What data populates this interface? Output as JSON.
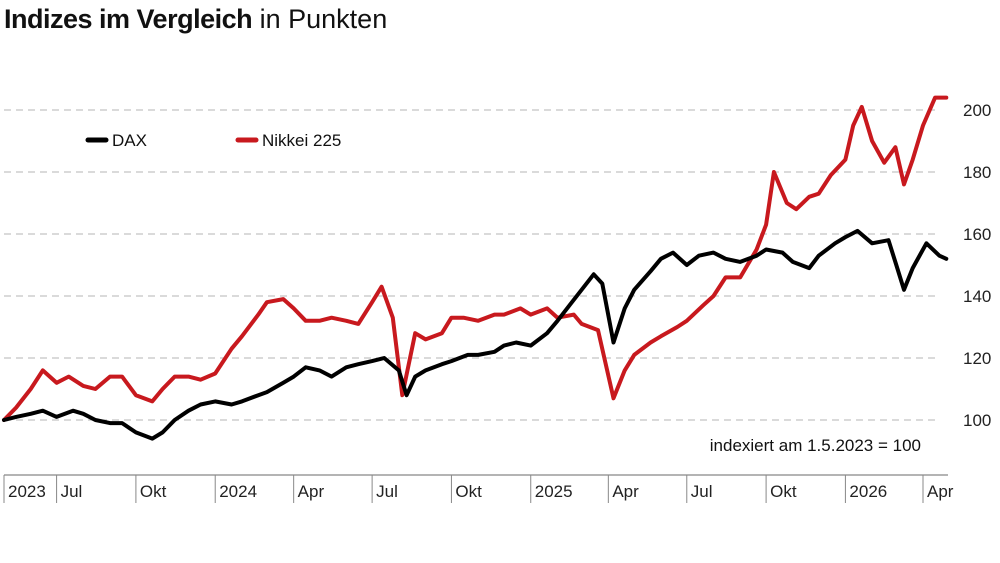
{
  "title": {
    "bold": "Indizes im Vergleich",
    "rest": "in Punkten"
  },
  "note": "indexiert am 1.5.2023 = 100",
  "colors": {
    "dax": "#000000",
    "nikkei": "#c8191e",
    "grid": "#b5b5b5",
    "axis": "#888888"
  },
  "chart_data": {
    "type": "line",
    "title": "Indizes im Vergleich in Punkten",
    "xlabel": "",
    "ylabel": "",
    "ylim": [
      85,
      210
    ],
    "xlim": [
      "2023-05-01",
      "2026-04-30"
    ],
    "y_ticks": [
      100,
      120,
      140,
      160,
      180,
      200
    ],
    "x_ticks": [
      {
        "date": "2023-05-01",
        "label": "2023"
      },
      {
        "date": "2023-07-01",
        "label": "Jul"
      },
      {
        "date": "2023-10-01",
        "label": "Okt"
      },
      {
        "date": "2024-01-01",
        "label": "2024"
      },
      {
        "date": "2024-04-01",
        "label": "Apr"
      },
      {
        "date": "2024-07-01",
        "label": "Jul"
      },
      {
        "date": "2024-10-01",
        "label": "Okt"
      },
      {
        "date": "2025-01-01",
        "label": "2025"
      },
      {
        "date": "2025-04-01",
        "label": "Apr"
      },
      {
        "date": "2025-07-01",
        "label": "Jul"
      },
      {
        "date": "2025-10-01",
        "label": "Okt"
      },
      {
        "date": "2026-01-01",
        "label": "2026"
      },
      {
        "date": "2026-04-01",
        "label": "Apr"
      }
    ],
    "grid": true,
    "legend": "top-left",
    "series": [
      {
        "name": "DAX",
        "color": "#000000",
        "points": [
          [
            "2023-05-01",
            100
          ],
          [
            "2023-05-15",
            101
          ],
          [
            "2023-06-01",
            102
          ],
          [
            "2023-06-15",
            103
          ],
          [
            "2023-07-01",
            101
          ],
          [
            "2023-07-20",
            103
          ],
          [
            "2023-08-01",
            102
          ],
          [
            "2023-08-15",
            100
          ],
          [
            "2023-09-01",
            99
          ],
          [
            "2023-09-15",
            99
          ],
          [
            "2023-10-01",
            96
          ],
          [
            "2023-10-20",
            94
          ],
          [
            "2023-11-01",
            96
          ],
          [
            "2023-11-15",
            100
          ],
          [
            "2023-12-01",
            103
          ],
          [
            "2023-12-15",
            105
          ],
          [
            "2024-01-01",
            106
          ],
          [
            "2024-01-20",
            105
          ],
          [
            "2024-02-01",
            106
          ],
          [
            "2024-02-20",
            108
          ],
          [
            "2024-03-01",
            109
          ],
          [
            "2024-03-20",
            112
          ],
          [
            "2024-04-01",
            114
          ],
          [
            "2024-04-15",
            117
          ],
          [
            "2024-05-01",
            116
          ],
          [
            "2024-05-15",
            114
          ],
          [
            "2024-06-01",
            117
          ],
          [
            "2024-06-15",
            118
          ],
          [
            "2024-07-01",
            119
          ],
          [
            "2024-07-15",
            120
          ],
          [
            "2024-08-01",
            116
          ],
          [
            "2024-08-10",
            108
          ],
          [
            "2024-08-20",
            114
          ],
          [
            "2024-09-01",
            116
          ],
          [
            "2024-09-20",
            118
          ],
          [
            "2024-10-01",
            119
          ],
          [
            "2024-10-20",
            121
          ],
          [
            "2024-11-01",
            121
          ],
          [
            "2024-11-20",
            122
          ],
          [
            "2024-12-01",
            124
          ],
          [
            "2024-12-15",
            125
          ],
          [
            "2025-01-01",
            124
          ],
          [
            "2025-01-20",
            128
          ],
          [
            "2025-02-01",
            132
          ],
          [
            "2025-02-15",
            137
          ],
          [
            "2025-03-01",
            142
          ],
          [
            "2025-03-15",
            147
          ],
          [
            "2025-03-25",
            144
          ],
          [
            "2025-04-07",
            125
          ],
          [
            "2025-04-20",
            136
          ],
          [
            "2025-05-01",
            142
          ],
          [
            "2025-05-20",
            148
          ],
          [
            "2025-06-01",
            152
          ],
          [
            "2025-06-15",
            154
          ],
          [
            "2025-07-01",
            150
          ],
          [
            "2025-07-15",
            153
          ],
          [
            "2025-08-01",
            154
          ],
          [
            "2025-08-15",
            152
          ],
          [
            "2025-09-01",
            151
          ],
          [
            "2025-09-20",
            153
          ],
          [
            "2025-10-01",
            155
          ],
          [
            "2025-10-20",
            154
          ],
          [
            "2025-11-01",
            151
          ],
          [
            "2025-11-20",
            149
          ],
          [
            "2025-12-01",
            153
          ],
          [
            "2025-12-20",
            157
          ],
          [
            "2026-01-01",
            159
          ],
          [
            "2026-01-15",
            161
          ],
          [
            "2026-02-01",
            157
          ],
          [
            "2026-02-20",
            158
          ],
          [
            "2026-03-01",
            150
          ],
          [
            "2026-03-10",
            142
          ],
          [
            "2026-03-20",
            149
          ],
          [
            "2026-04-05",
            157
          ],
          [
            "2026-04-20",
            153
          ],
          [
            "2026-04-28",
            152
          ]
        ]
      },
      {
        "name": "Nikkei 225",
        "color": "#c8191e",
        "points": [
          [
            "2023-05-01",
            100
          ],
          [
            "2023-05-15",
            104
          ],
          [
            "2023-06-01",
            110
          ],
          [
            "2023-06-15",
            116
          ],
          [
            "2023-07-01",
            112
          ],
          [
            "2023-07-15",
            114
          ],
          [
            "2023-08-01",
            111
          ],
          [
            "2023-08-15",
            110
          ],
          [
            "2023-09-01",
            114
          ],
          [
            "2023-09-15",
            114
          ],
          [
            "2023-10-01",
            108
          ],
          [
            "2023-10-20",
            106
          ],
          [
            "2023-11-01",
            110
          ],
          [
            "2023-11-15",
            114
          ],
          [
            "2023-12-01",
            114
          ],
          [
            "2023-12-15",
            113
          ],
          [
            "2024-01-01",
            115
          ],
          [
            "2024-01-20",
            123
          ],
          [
            "2024-02-01",
            127
          ],
          [
            "2024-02-20",
            134
          ],
          [
            "2024-03-01",
            138
          ],
          [
            "2024-03-20",
            139
          ],
          [
            "2024-04-01",
            136
          ],
          [
            "2024-04-15",
            132
          ],
          [
            "2024-05-01",
            132
          ],
          [
            "2024-05-15",
            133
          ],
          [
            "2024-06-01",
            132
          ],
          [
            "2024-06-15",
            131
          ],
          [
            "2024-07-01",
            138
          ],
          [
            "2024-07-12",
            143
          ],
          [
            "2024-07-25",
            133
          ],
          [
            "2024-08-05",
            108
          ],
          [
            "2024-08-20",
            128
          ],
          [
            "2024-09-01",
            126
          ],
          [
            "2024-09-20",
            128
          ],
          [
            "2024-10-01",
            133
          ],
          [
            "2024-10-15",
            133
          ],
          [
            "2024-11-01",
            132
          ],
          [
            "2024-11-20",
            134
          ],
          [
            "2024-12-01",
            134
          ],
          [
            "2024-12-20",
            136
          ],
          [
            "2025-01-01",
            134
          ],
          [
            "2025-01-20",
            136
          ],
          [
            "2025-02-01",
            133
          ],
          [
            "2025-02-20",
            134
          ],
          [
            "2025-03-01",
            131
          ],
          [
            "2025-03-20",
            129
          ],
          [
            "2025-04-07",
            107
          ],
          [
            "2025-04-20",
            116
          ],
          [
            "2025-05-01",
            121
          ],
          [
            "2025-05-20",
            125
          ],
          [
            "2025-06-01",
            127
          ],
          [
            "2025-06-20",
            130
          ],
          [
            "2025-07-01",
            132
          ],
          [
            "2025-07-20",
            137
          ],
          [
            "2025-08-01",
            140
          ],
          [
            "2025-08-15",
            146
          ],
          [
            "2025-09-01",
            146
          ],
          [
            "2025-09-20",
            155
          ],
          [
            "2025-10-01",
            163
          ],
          [
            "2025-10-10",
            180
          ],
          [
            "2025-10-25",
            170
          ],
          [
            "2025-11-05",
            168
          ],
          [
            "2025-11-20",
            172
          ],
          [
            "2025-12-01",
            173
          ],
          [
            "2025-12-15",
            179
          ],
          [
            "2026-01-01",
            184
          ],
          [
            "2026-01-10",
            195
          ],
          [
            "2026-01-20",
            201
          ],
          [
            "2026-02-01",
            190
          ],
          [
            "2026-02-15",
            183
          ],
          [
            "2026-02-28",
            188
          ],
          [
            "2026-03-10",
            176
          ],
          [
            "2026-03-20",
            184
          ],
          [
            "2026-04-01",
            195
          ],
          [
            "2026-04-15",
            204
          ],
          [
            "2026-04-28",
            204
          ]
        ]
      }
    ]
  }
}
